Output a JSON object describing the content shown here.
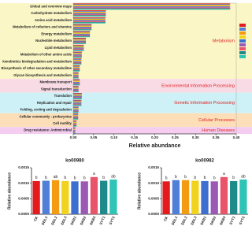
{
  "chart_data": [
    {
      "type": "bar",
      "orientation": "horizontal",
      "xlabel": "Relative abundance",
      "xlim": [
        0,
        0.4
      ],
      "xticks": [
        {
          "value": 0,
          "label": "0.00"
        },
        {
          "value": 0.05,
          "label": "0.05"
        },
        {
          "value": 0.1,
          "label": "0.10"
        },
        {
          "value": 0.15,
          "label": "0.15"
        },
        {
          "value": 0.2,
          "label": "0.20"
        },
        {
          "value": 0.25,
          "label": "0.25"
        },
        {
          "value": 0.3,
          "label": "0.30"
        },
        {
          "value": 0.35,
          "label": "0.35"
        },
        {
          "value": 0.4,
          "label": "0.40"
        }
      ],
      "groups": [
        {
          "name": "Metabolism",
          "color": "#fbf6c6",
          "categories": [
            "Global and overview maps",
            "Carbohydrate metabolism",
            "Amino acid metabolism",
            "Metabolism of cofactors and vitamins",
            "Energy metabolism",
            "Nucleotide metabolism",
            "Lipid metabolism",
            "Metabolism of other amino acids",
            "Xenobiotics biodegradation and metabolism",
            "Biosynthesis of other secondary metabolites",
            "Glycan biosynthesis and metabolism"
          ]
        },
        {
          "name": "Environmental Information Processing",
          "color": "#f9dbe6",
          "categories": [
            "Membrane transport",
            "Signal transduction"
          ]
        },
        {
          "name": "Genetic Information Processing",
          "color": "#cdf1f6",
          "categories": [
            "Translation",
            "Replication and repair",
            "Folding, sorting and degradation"
          ]
        },
        {
          "name": "Cellular Processes",
          "color": "#fcdfb8",
          "categories": [
            "Cellular community - prokaryotes",
            "Cell motility"
          ]
        },
        {
          "name": "Human Diseases",
          "color": "#f4cdf0",
          "categories": [
            "Drug resistance: Antimicrobial"
          ]
        }
      ],
      "series": [
        {
          "color": "#e41a1c",
          "values": [
            0.385,
            0.08,
            0.079,
            0.045,
            0.041,
            0.031,
            0.026,
            0.021,
            0.02,
            0.016,
            0.013,
            0.016,
            0.013,
            0.021,
            0.02,
            0.013,
            0.012,
            0.008,
            0.005
          ]
        },
        {
          "color": "#4f7fd6",
          "values": [
            0.384,
            0.08,
            0.079,
            0.045,
            0.041,
            0.031,
            0.026,
            0.021,
            0.02,
            0.016,
            0.013,
            0.016,
            0.013,
            0.021,
            0.02,
            0.013,
            0.012,
            0.008,
            0.005
          ]
        },
        {
          "color": "#f39c12",
          "values": [
            0.386,
            0.08,
            0.079,
            0.045,
            0.041,
            0.031,
            0.026,
            0.021,
            0.02,
            0.016,
            0.013,
            0.016,
            0.013,
            0.021,
            0.02,
            0.013,
            0.012,
            0.008,
            0.005
          ]
        },
        {
          "color": "#f1d21c",
          "values": [
            0.383,
            0.08,
            0.079,
            0.045,
            0.041,
            0.031,
            0.026,
            0.021,
            0.02,
            0.016,
            0.013,
            0.016,
            0.013,
            0.021,
            0.02,
            0.013,
            0.012,
            0.008,
            0.005
          ]
        },
        {
          "color": "#3d6fd0",
          "values": [
            0.385,
            0.08,
            0.079,
            0.045,
            0.041,
            0.031,
            0.026,
            0.021,
            0.02,
            0.016,
            0.013,
            0.016,
            0.013,
            0.021,
            0.02,
            0.013,
            0.012,
            0.008,
            0.005
          ]
        },
        {
          "color": "#9b59b6",
          "values": [
            0.384,
            0.08,
            0.079,
            0.045,
            0.041,
            0.031,
            0.026,
            0.021,
            0.02,
            0.016,
            0.013,
            0.016,
            0.013,
            0.021,
            0.02,
            0.013,
            0.012,
            0.008,
            0.005
          ]
        },
        {
          "color": "#e8556b",
          "values": [
            0.386,
            0.08,
            0.079,
            0.045,
            0.041,
            0.031,
            0.026,
            0.021,
            0.02,
            0.016,
            0.013,
            0.016,
            0.013,
            0.021,
            0.02,
            0.013,
            0.012,
            0.008,
            0.005
          ]
        },
        {
          "color": "#1f8a8a",
          "values": [
            0.385,
            0.08,
            0.079,
            0.045,
            0.041,
            0.031,
            0.026,
            0.021,
            0.02,
            0.016,
            0.013,
            0.016,
            0.013,
            0.021,
            0.02,
            0.013,
            0.012,
            0.008,
            0.005
          ]
        },
        {
          "color": "#2ec4b6",
          "values": [
            0.384,
            0.08,
            0.079,
            0.045,
            0.041,
            0.031,
            0.026,
            0.021,
            0.02,
            0.016,
            0.013,
            0.016,
            0.013,
            0.021,
            0.02,
            0.013,
            0.012,
            0.008,
            0.005
          ]
        }
      ]
    },
    {
      "type": "column",
      "title": "ko00980",
      "ylabel": "Relative abundance",
      "ylim": [
        0,
        0.0015
      ],
      "yticks": [
        {
          "value": 0,
          "label": "0.0000"
        },
        {
          "value": 0.0005,
          "label": "0.0005"
        },
        {
          "value": 0.001,
          "label": "0.0010"
        },
        {
          "value": 0.0015,
          "label": "0.0015"
        }
      ],
      "categories": [
        "CK",
        "DDL1",
        "DDL2",
        "DDL3",
        "SKB1",
        "SKB2",
        "SKB3",
        "SYT1",
        "SYT2"
      ],
      "colors": [
        "#e41a1c",
        "#4f7fd6",
        "#f39c12",
        "#f1d21c",
        "#3d6fd0",
        "#9b59b6",
        "#e8556b",
        "#1f8a8a",
        "#2ec4b6"
      ],
      "values": [
        0.00107,
        0.00108,
        0.0011,
        0.00107,
        0.00106,
        0.00106,
        0.0012,
        0.00108,
        0.00112
      ],
      "letters": [
        "b",
        "b",
        "ab",
        "b",
        "b",
        "b",
        "a",
        "b",
        "ab"
      ]
    },
    {
      "type": "column",
      "title": "ko00982",
      "ylabel": "Relative abundance",
      "ylim": [
        0,
        0.0015
      ],
      "yticks": [
        {
          "value": 0,
          "label": "0.0000"
        },
        {
          "value": 0.0005,
          "label": "0.0005"
        },
        {
          "value": 0.001,
          "label": "0.0010"
        },
        {
          "value": 0.0015,
          "label": "0.0015"
        }
      ],
      "categories": [
        "CK",
        "DDL1",
        "DDL2",
        "DDL3",
        "SKB1",
        "SKB2",
        "SKB3",
        "SYT1",
        "SYT2"
      ],
      "colors": [
        "#e41a1c",
        "#4f7fd6",
        "#f39c12",
        "#f1d21c",
        "#3d6fd0",
        "#9b59b6",
        "#e8556b",
        "#1f8a8a",
        "#2ec4b6"
      ],
      "values": [
        0.00106,
        0.0011,
        0.0011,
        0.00108,
        0.00107,
        0.00106,
        0.0012,
        0.00107,
        0.00112
      ],
      "letters": [
        "b",
        "b",
        "b",
        "b",
        "b",
        "b",
        "a",
        "b",
        "ab"
      ]
    }
  ]
}
